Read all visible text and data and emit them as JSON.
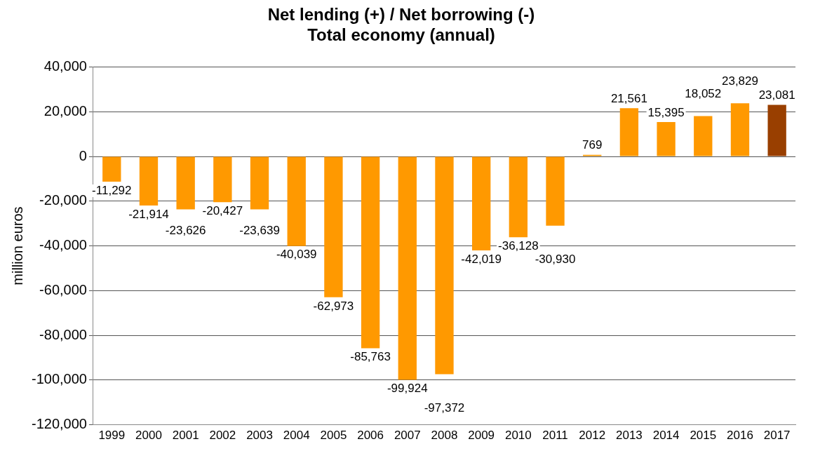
{
  "chart_data": {
    "type": "bar",
    "title": "Net lending (+) / Net borrowing (-)\nTotal economy (annual)",
    "ylabel": "million euros",
    "categories": [
      "1999",
      "2000",
      "2001",
      "2002",
      "2003",
      "2004",
      "2005",
      "2006",
      "2007",
      "2008",
      "2009",
      "2010",
      "2011",
      "2012",
      "2013",
      "2014",
      "2015",
      "2016",
      "2017"
    ],
    "values": [
      -11292,
      -21914,
      -23626,
      -20427,
      -23639,
      -40039,
      -62973,
      -85763,
      -99924,
      -97372,
      -42019,
      -36128,
      -30930,
      769,
      21561,
      15395,
      18052,
      23829,
      23081
    ],
    "colors": [
      "#ff9900",
      "#ff9900",
      "#ff9900",
      "#ff9900",
      "#ff9900",
      "#ff9900",
      "#ff9900",
      "#ff9900",
      "#ff9900",
      "#ff9900",
      "#ff9900",
      "#ff9900",
      "#ff9900",
      "#ff9900",
      "#ff9900",
      "#ff9900",
      "#ff9900",
      "#ff9900",
      "#993f00"
    ],
    "value_labels": [
      "-11,292",
      "-21,914",
      "-23,626",
      "-20,427",
      "-23,639",
      "-40,039",
      "-62,973",
      "-85,763",
      "-99,924",
      "-97,372",
      "-42,019",
      "-36,128",
      "-30,930",
      "769",
      "21,561",
      "15,395",
      "18,052",
      "23,829",
      "23,081"
    ],
    "ylim": [
      -120000,
      40000
    ],
    "yticks": [
      {
        "value": -120000,
        "label": "-120,000"
      },
      {
        "value": -100000,
        "label": "-100,000"
      },
      {
        "value": -80000,
        "label": "-80,000"
      },
      {
        "value": -60000,
        "label": "-60,000"
      },
      {
        "value": -40000,
        "label": "-40,000"
      },
      {
        "value": -20000,
        "label": "-20,000"
      },
      0,
      {
        "value": 20000,
        "label": "20,000"
      },
      {
        "value": 40000,
        "label": "40,000"
      }
    ],
    "grid": "y",
    "legend": false
  }
}
